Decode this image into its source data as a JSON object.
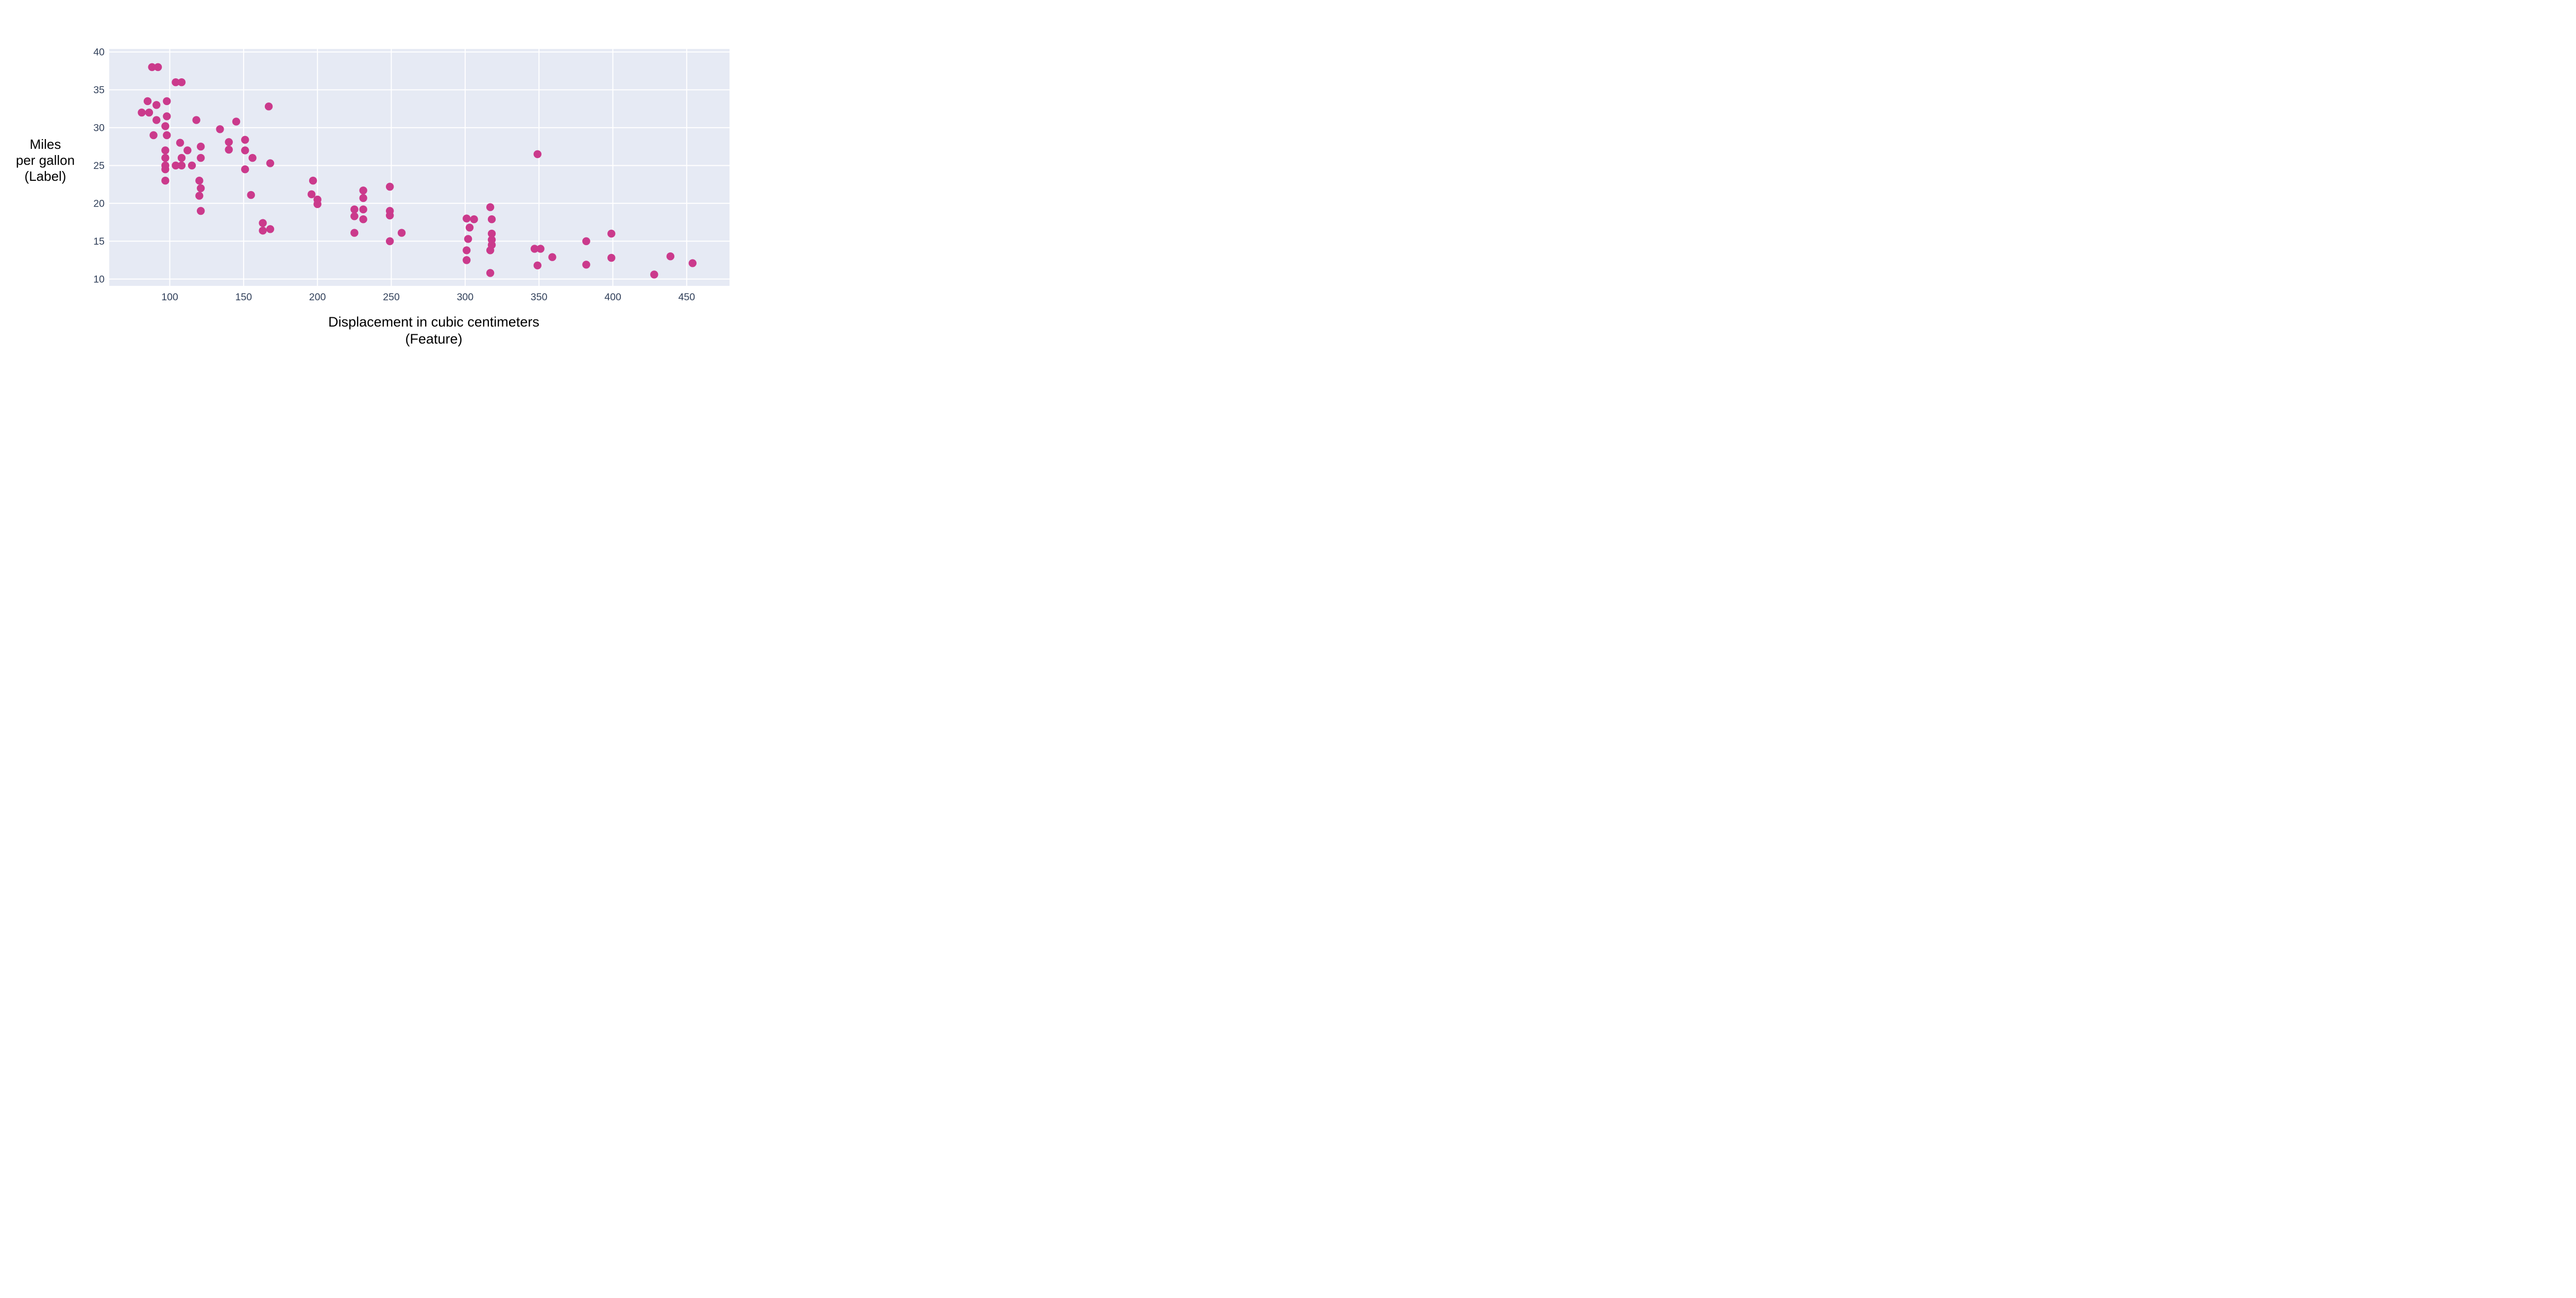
{
  "figure": {
    "background": "#ffffff"
  },
  "chart_data": {
    "type": "scatter",
    "title": "",
    "xlabel_lines": [
      "Displacement in cubic centimeters",
      "(Feature)"
    ],
    "ylabel_lines": [
      "Miles",
      "per gallon",
      "(Label)"
    ],
    "x_ticks": [
      100,
      150,
      200,
      250,
      300,
      350,
      400,
      450
    ],
    "y_ticks": [
      10,
      15,
      20,
      25,
      30,
      35,
      40
    ],
    "xlim": [
      59,
      479
    ],
    "ylim": [
      9.1,
      40.4
    ],
    "grid": true,
    "legend": "none",
    "colors": {
      "point": "#cb3a8c",
      "plot_bg": "#e6eaf4",
      "grid": "#ffffff",
      "tick_label": "#31405a",
      "axis_label": "#000000"
    },
    "point_radius": 7.7,
    "points": [
      [
        88,
        38
      ],
      [
        92,
        38
      ],
      [
        104,
        36
      ],
      [
        108,
        36
      ],
      [
        85,
        33.5
      ],
      [
        98,
        33.5
      ],
      [
        91,
        33
      ],
      [
        81,
        32
      ],
      [
        86,
        32
      ],
      [
        98,
        31.5
      ],
      [
        91,
        31
      ],
      [
        118,
        31
      ],
      [
        97,
        30.2
      ],
      [
        89,
        29
      ],
      [
        98,
        29
      ],
      [
        107,
        28
      ],
      [
        121,
        27.5
      ],
      [
        97,
        27
      ],
      [
        112,
        27
      ],
      [
        97,
        26
      ],
      [
        108,
        26
      ],
      [
        121,
        26
      ],
      [
        104,
        25
      ],
      [
        108,
        25
      ],
      [
        115,
        25
      ],
      [
        97,
        25
      ],
      [
        97,
        24.5
      ],
      [
        97,
        23
      ],
      [
        120,
        23
      ],
      [
        121,
        22
      ],
      [
        120,
        21
      ],
      [
        121,
        19
      ],
      [
        134,
        29.8
      ],
      [
        145,
        30.8
      ],
      [
        140,
        28.1
      ],
      [
        140,
        27.1
      ],
      [
        151,
        28.4
      ],
      [
        151,
        27
      ],
      [
        156,
        26
      ],
      [
        168,
        25.3
      ],
      [
        151,
        24.5
      ],
      [
        155,
        21.1
      ],
      [
        167,
        32.8
      ],
      [
        163,
        17.4
      ],
      [
        163,
        16.4
      ],
      [
        168,
        16.6
      ],
      [
        197,
        23
      ],
      [
        196,
        21.2
      ],
      [
        200,
        20.5
      ],
      [
        200,
        19.9
      ],
      [
        231,
        21.7
      ],
      [
        231,
        20.7
      ],
      [
        231,
        19.2
      ],
      [
        225,
        19.2
      ],
      [
        225,
        18.3
      ],
      [
        231,
        17.9
      ],
      [
        225,
        16.1
      ],
      [
        249,
        22.2
      ],
      [
        249,
        19
      ],
      [
        249,
        18.4
      ],
      [
        257,
        16.1
      ],
      [
        249,
        15
      ],
      [
        301,
        18
      ],
      [
        306,
        17.9
      ],
      [
        303,
        16.8
      ],
      [
        302,
        15.3
      ],
      [
        301,
        13.8
      ],
      [
        301,
        12.5
      ],
      [
        317,
        19.5
      ],
      [
        318,
        17.9
      ],
      [
        318,
        16
      ],
      [
        318,
        15.2
      ],
      [
        318,
        14.5
      ],
      [
        317,
        13.8
      ],
      [
        317,
        10.8
      ],
      [
        349,
        26.5
      ],
      [
        347,
        14
      ],
      [
        351,
        14
      ],
      [
        349,
        11.8
      ],
      [
        359,
        12.9
      ],
      [
        382,
        15
      ],
      [
        382,
        11.9
      ],
      [
        399,
        16
      ],
      [
        399,
        12.8
      ],
      [
        428,
        10.6
      ],
      [
        439,
        13
      ],
      [
        454,
        12.1
      ]
    ]
  }
}
